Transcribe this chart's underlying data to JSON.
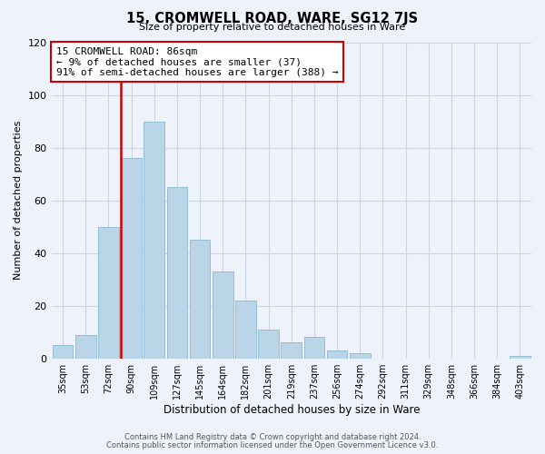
{
  "title": "15, CROMWELL ROAD, WARE, SG12 7JS",
  "subtitle": "Size of property relative to detached houses in Ware",
  "xlabel": "Distribution of detached houses by size in Ware",
  "ylabel": "Number of detached properties",
  "bar_labels": [
    "35sqm",
    "53sqm",
    "72sqm",
    "90sqm",
    "109sqm",
    "127sqm",
    "145sqm",
    "164sqm",
    "182sqm",
    "201sqm",
    "219sqm",
    "237sqm",
    "256sqm",
    "274sqm",
    "292sqm",
    "311sqm",
    "329sqm",
    "348sqm",
    "366sqm",
    "384sqm",
    "403sqm"
  ],
  "bar_values": [
    5,
    9,
    50,
    76,
    90,
    65,
    45,
    33,
    22,
    11,
    6,
    8,
    3,
    2,
    0,
    0,
    0,
    0,
    0,
    0,
    1
  ],
  "bar_color": "#bad4e8",
  "bar_edge_color": "#93bcd8",
  "vline_index": 3,
  "vline_color": "#cc0000",
  "annotation_lines": [
    "15 CROMWELL ROAD: 86sqm",
    "← 9% of detached houses are smaller (37)",
    "91% of semi-detached houses are larger (388) →"
  ],
  "ylim": [
    0,
    120
  ],
  "yticks": [
    0,
    20,
    40,
    60,
    80,
    100,
    120
  ],
  "footer1": "Contains HM Land Registry data © Crown copyright and database right 2024.",
  "footer2": "Contains public sector information licensed under the Open Government Licence v3.0.",
  "bg_color": "#eef2fa",
  "grid_color": "#c8d4ec"
}
